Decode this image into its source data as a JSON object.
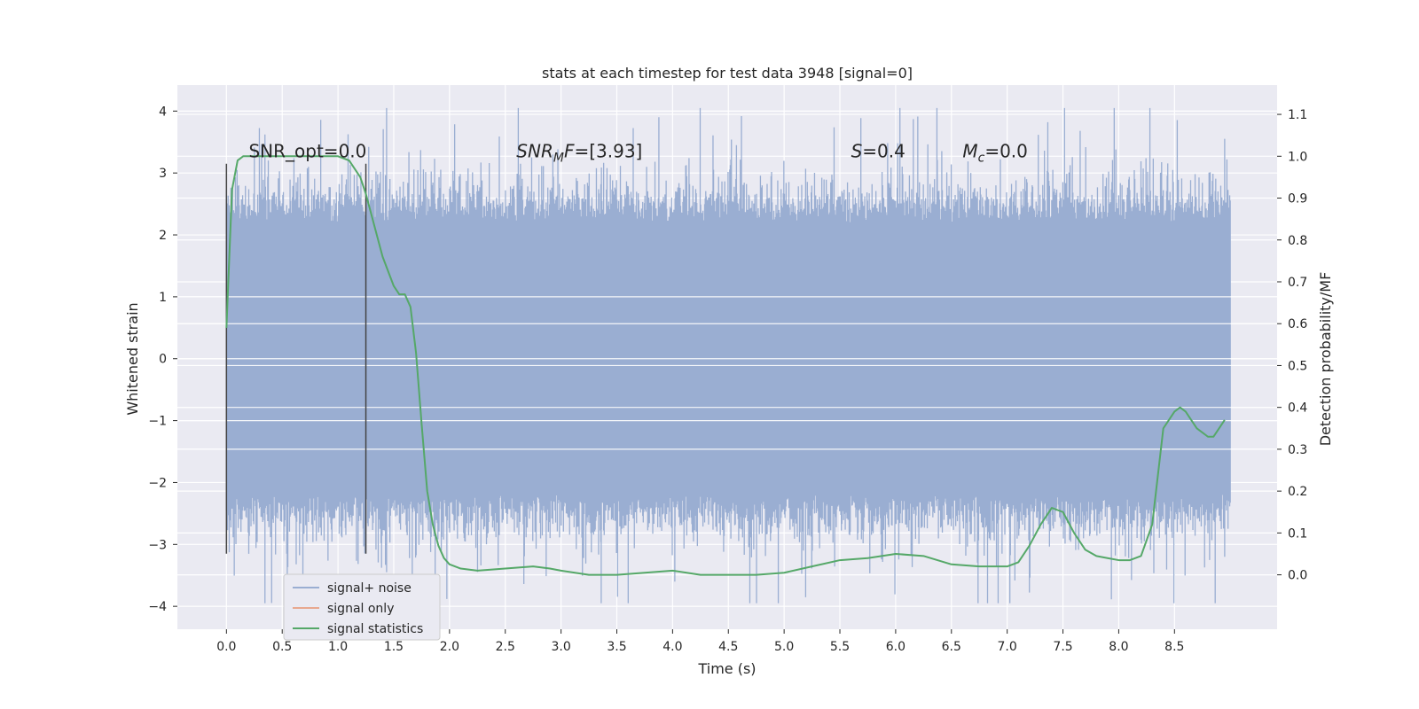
{
  "chart_data": {
    "type": "line",
    "title": "stats at each timestep for test data 3948 [signal=0]",
    "xlabel": "Time (s)",
    "ylabel": "Whitened strain",
    "y2label": "Detection probability/MF",
    "xlim": [
      -0.44,
      9.42
    ],
    "ylim": [
      -4.37,
      4.42
    ],
    "y2lim": [
      -0.13,
      1.17
    ],
    "grid": true,
    "x_ticks": [
      0.0,
      0.5,
      1.0,
      1.5,
      2.0,
      2.5,
      3.0,
      3.5,
      4.0,
      4.5,
      5.0,
      5.5,
      6.0,
      6.5,
      7.0,
      7.5,
      8.0,
      8.5
    ],
    "x_tick_labels": [
      "0.0",
      "0.5",
      "1.0",
      "1.5",
      "2.0",
      "2.5",
      "3.0",
      "3.5",
      "4.0",
      "4.5",
      "5.0",
      "5.5",
      "6.0",
      "6.5",
      "7.0",
      "7.5",
      "8.0",
      "8.5"
    ],
    "y_ticks": [
      4,
      3,
      2,
      1,
      0,
      -1,
      -2,
      -3,
      -4
    ],
    "y_tick_labels": [
      "4",
      "3",
      "2",
      "1",
      "0",
      "−1",
      "−2",
      "−3",
      "−4"
    ],
    "y2_ticks": [
      1.1,
      1.0,
      0.9,
      0.8,
      0.7,
      0.6,
      0.5,
      0.4,
      0.3,
      0.2,
      0.1,
      0.0
    ],
    "y2_tick_labels": [
      "1.1",
      "1.0",
      "0.9",
      "0.8",
      "0.7",
      "0.6",
      "0.5",
      "0.4",
      "0.3",
      "0.2",
      "0.1",
      "0.0"
    ],
    "annotations": [
      {
        "name": "snr-opt-annotation",
        "text": "SNR_opt=0.0",
        "x": 0.2,
        "y": 3.25
      },
      {
        "name": "snr-mf-annotation",
        "text": "SNR_MF=[3.93]",
        "x": 2.6,
        "y": 3.25
      },
      {
        "name": "s-annotation",
        "text": "S=0.4",
        "x": 5.6,
        "y": 3.25
      },
      {
        "name": "mc-annotation",
        "text": "M_c=0.0",
        "x": 6.6,
        "y": 3.25
      }
    ],
    "vertical_markers": [
      {
        "x": 0.0,
        "y_range": [
          -3.15,
          3.15
        ]
      },
      {
        "x": 1.25,
        "y_range": [
          -3.15,
          3.15
        ]
      }
    ],
    "series": [
      {
        "name": "signal+ noise",
        "axis": "left",
        "color": "#9aaed2",
        "kind": "noise",
        "x_range": [
          0.0,
          9.0
        ],
        "samples": 1800,
        "envelope_lower": -2.2,
        "envelope_upper": 2.2,
        "min": -3.95,
        "max": 4.05
      },
      {
        "name": "signal only",
        "axis": "left",
        "color": "#e8a88f",
        "x": [
          0.0,
          9.0
        ],
        "y": [
          0.0,
          0.0
        ]
      },
      {
        "name": "signal statistics",
        "axis": "right",
        "color": "#55a868",
        "x": [
          0.0,
          0.05,
          0.1,
          0.15,
          0.2,
          0.3,
          0.4,
          0.6,
          0.8,
          1.0,
          1.1,
          1.2,
          1.25,
          1.3,
          1.4,
          1.5,
          1.55,
          1.6,
          1.65,
          1.7,
          1.75,
          1.8,
          1.85,
          1.9,
          1.95,
          2.0,
          2.1,
          2.25,
          2.5,
          2.75,
          2.9,
          3.0,
          3.25,
          3.5,
          3.75,
          4.0,
          4.25,
          4.5,
          4.75,
          5.0,
          5.25,
          5.5,
          5.75,
          6.0,
          6.25,
          6.5,
          6.75,
          7.0,
          7.1,
          7.2,
          7.3,
          7.4,
          7.5,
          7.6,
          7.7,
          7.8,
          7.9,
          8.0,
          8.1,
          8.2,
          8.3,
          8.4,
          8.5,
          8.55,
          8.6,
          8.7,
          8.8,
          8.85,
          8.9,
          8.95
        ],
        "y": [
          0.59,
          0.92,
          0.99,
          1.0,
          1.0,
          1.0,
          1.0,
          1.0,
          1.0,
          1.0,
          0.99,
          0.95,
          0.91,
          0.86,
          0.76,
          0.69,
          0.67,
          0.67,
          0.64,
          0.53,
          0.36,
          0.2,
          0.12,
          0.07,
          0.04,
          0.025,
          0.015,
          0.01,
          0.015,
          0.02,
          0.015,
          0.01,
          0.0,
          0.0,
          0.005,
          0.01,
          0.0,
          0.0,
          0.0,
          0.005,
          0.02,
          0.035,
          0.04,
          0.05,
          0.045,
          0.025,
          0.02,
          0.02,
          0.03,
          0.07,
          0.12,
          0.16,
          0.15,
          0.1,
          0.06,
          0.045,
          0.04,
          0.035,
          0.035,
          0.045,
          0.12,
          0.35,
          0.39,
          0.4,
          0.39,
          0.35,
          0.33,
          0.33,
          0.35,
          0.37
        ]
      }
    ],
    "legend": {
      "position": "lower-left",
      "entries": [
        {
          "label": "signal+ noise",
          "color": "#9aaed2"
        },
        {
          "label": "signal only",
          "color": "#e8a88f"
        },
        {
          "label": "signal statistics",
          "color": "#55a868"
        }
      ]
    }
  }
}
